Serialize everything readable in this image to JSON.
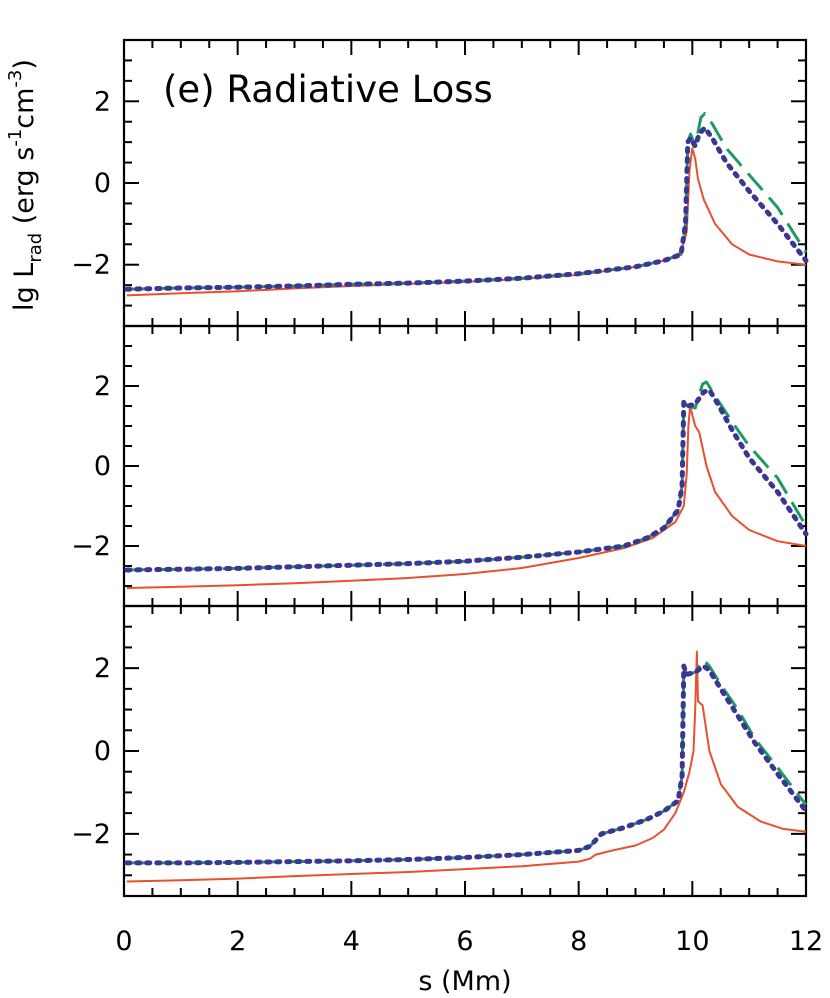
{
  "chart_data": {
    "type": "line",
    "title": "(e) Radiative Loss",
    "xlabel": "s (Mm)",
    "ylabel_parts": {
      "lg": "lg L",
      "sub": "rad",
      "unit_open": " (erg s",
      "exp1": "-1",
      "unit_mid": "cm",
      "exp2": "-3",
      "unit_close": ")"
    },
    "xlim": [
      0,
      12
    ],
    "xticks": [
      "0",
      "2",
      "4",
      "6",
      "8",
      "10",
      "12"
    ],
    "ylim": [
      -3.5,
      3.5
    ],
    "yticks": [
      "-2",
      "0",
      "2"
    ],
    "grid": false,
    "line_styles": [
      {
        "color": "#e8502e",
        "dash": "solid"
      },
      {
        "color": "#1f9a63",
        "dash": "dashed"
      },
      {
        "color": "#3b3594",
        "dash": "dotted"
      }
    ],
    "panels": [
      {
        "series": [
          {
            "points": [
              [
                0.05,
                -2.75
              ],
              [
                1,
                -2.7
              ],
              [
                2,
                -2.65
              ],
              [
                3,
                -2.58
              ],
              [
                4,
                -2.52
              ],
              [
                5,
                -2.47
              ],
              [
                6,
                -2.42
              ],
              [
                7,
                -2.35
              ],
              [
                8,
                -2.25
              ],
              [
                9,
                -2.05
              ],
              [
                9.5,
                -1.9
              ],
              [
                9.8,
                -1.7
              ],
              [
                9.9,
                -1.2
              ],
              [
                9.95,
                0.3
              ],
              [
                10.0,
                0.85
              ],
              [
                10.05,
                0.6
              ],
              [
                10.1,
                0.1
              ],
              [
                10.2,
                -0.4
              ],
              [
                10.4,
                -1.0
              ],
              [
                10.7,
                -1.5
              ],
              [
                11.0,
                -1.75
              ],
              [
                11.5,
                -1.92
              ],
              [
                12.0,
                -2.0
              ]
            ]
          },
          {
            "points": [
              [
                0.05,
                -2.6
              ],
              [
                1,
                -2.57
              ],
              [
                2,
                -2.55
              ],
              [
                3,
                -2.52
              ],
              [
                4,
                -2.48
              ],
              [
                5,
                -2.45
              ],
              [
                6,
                -2.4
              ],
              [
                7,
                -2.33
              ],
              [
                8,
                -2.22
              ],
              [
                9,
                -2.05
              ],
              [
                9.5,
                -1.9
              ],
              [
                9.8,
                -1.75
              ],
              [
                9.88,
                -1.0
              ],
              [
                9.92,
                1.0
              ],
              [
                9.97,
                1.2
              ],
              [
                10.05,
                0.9
              ],
              [
                10.15,
                1.6
              ],
              [
                10.22,
                1.7
              ],
              [
                10.35,
                1.45
              ],
              [
                10.6,
                0.85
              ],
              [
                11.0,
                0.2
              ],
              [
                11.5,
                -0.6
              ],
              [
                12.0,
                -1.7
              ]
            ]
          },
          {
            "points": [
              [
                0.05,
                -2.6
              ],
              [
                1,
                -2.57
              ],
              [
                2,
                -2.55
              ],
              [
                3,
                -2.52
              ],
              [
                4,
                -2.48
              ],
              [
                5,
                -2.45
              ],
              [
                6,
                -2.4
              ],
              [
                7,
                -2.33
              ],
              [
                8,
                -2.22
              ],
              [
                9,
                -2.05
              ],
              [
                9.5,
                -1.9
              ],
              [
                9.8,
                -1.75
              ],
              [
                9.88,
                -1.0
              ],
              [
                9.92,
                1.0
              ],
              [
                9.97,
                1.1
              ],
              [
                10.05,
                0.9
              ],
              [
                10.12,
                1.2
              ],
              [
                10.22,
                1.35
              ],
              [
                10.35,
                1.1
              ],
              [
                10.6,
                0.5
              ],
              [
                11.0,
                -0.2
              ],
              [
                11.5,
                -1.0
              ],
              [
                12.0,
                -1.9
              ]
            ]
          }
        ]
      },
      {
        "series": [
          {
            "points": [
              [
                0.05,
                -3.05
              ],
              [
                1,
                -3.02
              ],
              [
                2,
                -2.98
              ],
              [
                3,
                -2.93
              ],
              [
                4,
                -2.87
              ],
              [
                5,
                -2.8
              ],
              [
                6,
                -2.7
              ],
              [
                7,
                -2.55
              ],
              [
                8,
                -2.3
              ],
              [
                8.8,
                -2.05
              ],
              [
                9.3,
                -1.8
              ],
              [
                9.7,
                -1.4
              ],
              [
                9.85,
                -1.0
              ],
              [
                9.9,
                -0.2
              ],
              [
                9.93,
                1.0
              ],
              [
                9.96,
                1.5
              ],
              [
                10.05,
                1.0
              ],
              [
                10.12,
                0.85
              ],
              [
                10.25,
                0.0
              ],
              [
                10.4,
                -0.65
              ],
              [
                10.7,
                -1.25
              ],
              [
                11.0,
                -1.6
              ],
              [
                11.5,
                -1.88
              ],
              [
                12.0,
                -2.0
              ]
            ]
          },
          {
            "points": [
              [
                0.05,
                -2.6
              ],
              [
                1,
                -2.58
              ],
              [
                2,
                -2.56
              ],
              [
                3,
                -2.52
              ],
              [
                4,
                -2.48
              ],
              [
                5,
                -2.44
              ],
              [
                6,
                -2.38
              ],
              [
                7,
                -2.28
              ],
              [
                8,
                -2.15
              ],
              [
                8.8,
                -2.0
              ],
              [
                9.2,
                -1.8
              ],
              [
                9.5,
                -1.55
              ],
              [
                9.75,
                -1.1
              ],
              [
                9.82,
                -0.5
              ],
              [
                9.85,
                1.6
              ],
              [
                9.92,
                1.5
              ],
              [
                10.05,
                1.45
              ],
              [
                10.18,
                2.05
              ],
              [
                10.25,
                2.1
              ],
              [
                10.4,
                1.75
              ],
              [
                10.7,
                1.1
              ],
              [
                11.0,
                0.5
              ],
              [
                11.5,
                -0.3
              ],
              [
                12.0,
                -1.5
              ]
            ]
          },
          {
            "points": [
              [
                0.05,
                -2.6
              ],
              [
                1,
                -2.58
              ],
              [
                2,
                -2.56
              ],
              [
                3,
                -2.52
              ],
              [
                4,
                -2.48
              ],
              [
                5,
                -2.44
              ],
              [
                6,
                -2.38
              ],
              [
                7,
                -2.28
              ],
              [
                8,
                -2.15
              ],
              [
                8.8,
                -2.0
              ],
              [
                9.2,
                -1.8
              ],
              [
                9.5,
                -1.55
              ],
              [
                9.75,
                -1.1
              ],
              [
                9.82,
                -0.5
              ],
              [
                9.85,
                1.6
              ],
              [
                9.92,
                1.5
              ],
              [
                10.05,
                1.55
              ],
              [
                10.2,
                1.85
              ],
              [
                10.3,
                1.9
              ],
              [
                10.45,
                1.55
              ],
              [
                10.7,
                0.9
              ],
              [
                11.0,
                0.2
              ],
              [
                11.5,
                -0.65
              ],
              [
                12.0,
                -1.7
              ]
            ]
          }
        ]
      },
      {
        "series": [
          {
            "points": [
              [
                0.05,
                -3.15
              ],
              [
                1,
                -3.12
              ],
              [
                2,
                -3.08
              ],
              [
                3,
                -3.02
              ],
              [
                4,
                -2.97
              ],
              [
                5,
                -2.92
              ],
              [
                6,
                -2.85
              ],
              [
                7,
                -2.78
              ],
              [
                8,
                -2.67
              ],
              [
                8.2,
                -2.6
              ],
              [
                8.3,
                -2.5
              ],
              [
                8.6,
                -2.4
              ],
              [
                9.0,
                -2.28
              ],
              [
                9.3,
                -2.1
              ],
              [
                9.5,
                -1.9
              ],
              [
                9.7,
                -1.5
              ],
              [
                9.85,
                -1.0
              ],
              [
                9.95,
                -0.5
              ],
              [
                10.02,
                0.0
              ],
              [
                10.05,
                1.0
              ],
              [
                10.08,
                2.4
              ],
              [
                10.1,
                1.2
              ],
              [
                10.18,
                1.1
              ],
              [
                10.3,
                0.0
              ],
              [
                10.5,
                -0.8
              ],
              [
                10.8,
                -1.35
              ],
              [
                11.2,
                -1.7
              ],
              [
                11.6,
                -1.88
              ],
              [
                12.0,
                -1.95
              ]
            ]
          },
          {
            "points": [
              [
                0.05,
                -2.7
              ],
              [
                1,
                -2.7
              ],
              [
                2,
                -2.69
              ],
              [
                3,
                -2.67
              ],
              [
                4,
                -2.65
              ],
              [
                5,
                -2.62
              ],
              [
                6,
                -2.57
              ],
              [
                7,
                -2.5
              ],
              [
                8,
                -2.4
              ],
              [
                8.2,
                -2.3
              ],
              [
                8.4,
                -2.0
              ],
              [
                8.8,
                -1.85
              ],
              [
                9.2,
                -1.65
              ],
              [
                9.5,
                -1.45
              ],
              [
                9.75,
                -1.2
              ],
              [
                9.82,
                -0.6
              ],
              [
                9.85,
                2.05
              ],
              [
                9.9,
                1.85
              ],
              [
                10.05,
                1.9
              ],
              [
                10.2,
                2.2
              ],
              [
                10.3,
                2.05
              ],
              [
                10.5,
                1.6
              ],
              [
                10.8,
                1.0
              ],
              [
                11.1,
                0.3
              ],
              [
                11.5,
                -0.4
              ],
              [
                12.0,
                -1.3
              ]
            ]
          },
          {
            "points": [
              [
                0.05,
                -2.7
              ],
              [
                1,
                -2.7
              ],
              [
                2,
                -2.69
              ],
              [
                3,
                -2.67
              ],
              [
                4,
                -2.65
              ],
              [
                5,
                -2.62
              ],
              [
                6,
                -2.57
              ],
              [
                7,
                -2.5
              ],
              [
                8,
                -2.4
              ],
              [
                8.2,
                -2.3
              ],
              [
                8.4,
                -2.0
              ],
              [
                8.8,
                -1.85
              ],
              [
                9.2,
                -1.65
              ],
              [
                9.5,
                -1.45
              ],
              [
                9.75,
                -1.2
              ],
              [
                9.82,
                -0.6
              ],
              [
                9.85,
                2.05
              ],
              [
                9.9,
                1.85
              ],
              [
                10.05,
                1.9
              ],
              [
                10.2,
                2.05
              ],
              [
                10.3,
                1.95
              ],
              [
                10.5,
                1.5
              ],
              [
                10.8,
                0.85
              ],
              [
                11.1,
                0.2
              ],
              [
                11.5,
                -0.55
              ],
              [
                12.0,
                -1.45
              ]
            ]
          }
        ]
      }
    ]
  }
}
